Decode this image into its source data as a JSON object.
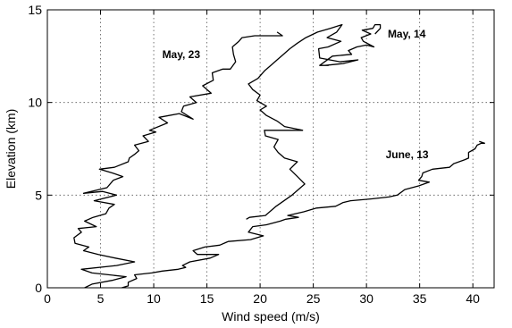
{
  "chart_data": {
    "type": "line",
    "title": "",
    "xlabel": "Wind speed (m/s)",
    "ylabel": "Elevation (km)",
    "xlim": [
      0,
      42
    ],
    "ylim": [
      0,
      15
    ],
    "xticks": [
      "0",
      "5",
      "10",
      "15",
      "20",
      "25",
      "30",
      "35",
      "40"
    ],
    "yticks": [
      "0",
      "5",
      "10",
      "15"
    ],
    "grid": true,
    "series": [
      {
        "name": "May, 23",
        "points": [
          [
            3.5,
            0.0
          ],
          [
            4.2,
            0.2
          ],
          [
            6.1,
            0.4
          ],
          [
            7.4,
            0.6
          ],
          [
            4.2,
            0.8
          ],
          [
            3.2,
            1.0
          ],
          [
            6.5,
            1.2
          ],
          [
            8.2,
            1.4
          ],
          [
            6.4,
            1.6
          ],
          [
            4.8,
            1.8
          ],
          [
            3.4,
            2.0
          ],
          [
            3.9,
            2.2
          ],
          [
            2.6,
            2.4
          ],
          [
            2.5,
            2.7
          ],
          [
            3.2,
            3.0
          ],
          [
            2.9,
            3.2
          ],
          [
            4.6,
            3.3
          ],
          [
            3.5,
            3.6
          ],
          [
            4.3,
            3.8
          ],
          [
            5.5,
            4.0
          ],
          [
            5.8,
            4.3
          ],
          [
            6.3,
            4.5
          ],
          [
            4.4,
            4.7
          ],
          [
            6.5,
            5.0
          ],
          [
            5.2,
            5.2
          ],
          [
            3.4,
            5.1
          ],
          [
            5.6,
            5.4
          ],
          [
            6.2,
            5.8
          ],
          [
            7.1,
            6.0
          ],
          [
            6.1,
            6.2
          ],
          [
            4.9,
            6.4
          ],
          [
            6.3,
            6.5
          ],
          [
            7.6,
            6.8
          ],
          [
            7.7,
            7.0
          ],
          [
            8.2,
            7.2
          ],
          [
            8.6,
            7.4
          ],
          [
            8.2,
            7.7
          ],
          [
            9.5,
            7.9
          ],
          [
            9.0,
            8.2
          ],
          [
            10.2,
            8.4
          ],
          [
            9.6,
            8.5
          ],
          [
            11.3,
            8.9
          ],
          [
            10.5,
            9.2
          ],
          [
            12.4,
            9.4
          ],
          [
            13.7,
            9.1
          ],
          [
            12.6,
            9.5
          ],
          [
            12.8,
            9.8
          ],
          [
            14.0,
            10.0
          ],
          [
            13.4,
            10.3
          ],
          [
            15.4,
            10.5
          ],
          [
            14.6,
            10.9
          ],
          [
            15.6,
            11.2
          ],
          [
            15.5,
            11.6
          ],
          [
            16.5,
            11.8
          ],
          [
            17.2,
            11.8
          ],
          [
            17.7,
            12.2
          ],
          [
            17.5,
            12.6
          ],
          [
            17.4,
            13.0
          ],
          [
            18.0,
            13.3
          ],
          [
            18.3,
            13.5
          ],
          [
            19.5,
            13.6
          ],
          [
            21.0,
            13.6
          ],
          [
            22.1,
            13.6
          ],
          [
            21.6,
            13.8
          ]
        ]
      },
      {
        "name": "May, 14",
        "points": [
          [
            18.7,
            3.7
          ],
          [
            19.0,
            3.8
          ],
          [
            20.5,
            3.9
          ],
          [
            21.5,
            4.4
          ],
          [
            23.0,
            5.0
          ],
          [
            24.2,
            5.6
          ],
          [
            23.5,
            6.0
          ],
          [
            22.8,
            6.4
          ],
          [
            23.5,
            6.8
          ],
          [
            22.3,
            7.0
          ],
          [
            21.7,
            7.3
          ],
          [
            21.3,
            7.6
          ],
          [
            21.7,
            8.0
          ],
          [
            20.5,
            8.2
          ],
          [
            20.4,
            8.5
          ],
          [
            24.0,
            8.5
          ],
          [
            22.3,
            8.7
          ],
          [
            21.6,
            9.0
          ],
          [
            20.6,
            9.3
          ],
          [
            20.0,
            9.6
          ],
          [
            20.6,
            9.8
          ],
          [
            19.7,
            10.1
          ],
          [
            20.0,
            10.4
          ],
          [
            19.3,
            10.7
          ],
          [
            18.9,
            11.0
          ],
          [
            19.8,
            11.3
          ],
          [
            20.4,
            11.7
          ],
          [
            21.0,
            12.0
          ],
          [
            21.6,
            12.3
          ],
          [
            22.2,
            12.6
          ],
          [
            22.8,
            12.9
          ],
          [
            23.5,
            13.2
          ],
          [
            24.3,
            13.5
          ],
          [
            25.4,
            13.8
          ],
          [
            26.6,
            14.0
          ],
          [
            27.7,
            14.2
          ],
          [
            27.2,
            13.8
          ],
          [
            26.3,
            13.5
          ],
          [
            27.6,
            13.3
          ],
          [
            26.4,
            13.0
          ],
          [
            25.5,
            12.9
          ],
          [
            25.6,
            12.4
          ],
          [
            27.5,
            12.2
          ],
          [
            29.2,
            12.3
          ],
          [
            27.8,
            12.1
          ],
          [
            26.1,
            12.0
          ],
          [
            26.4,
            12.0
          ],
          [
            25.6,
            12.0
          ],
          [
            26.8,
            12.5
          ],
          [
            28.6,
            12.6
          ],
          [
            28.3,
            12.8
          ],
          [
            29.1,
            13.0
          ],
          [
            30.0,
            13.1
          ],
          [
            30.7,
            13.0
          ],
          [
            29.7,
            13.3
          ],
          [
            29.5,
            13.5
          ],
          [
            30.4,
            13.7
          ],
          [
            29.6,
            13.9
          ],
          [
            30.6,
            14.0
          ],
          [
            30.8,
            14.2
          ],
          [
            31.3,
            14.2
          ],
          [
            31.3,
            14.0
          ],
          [
            30.8,
            13.7
          ]
        ]
      },
      {
        "name": "June, 13",
        "points": [
          [
            7.0,
            0.0
          ],
          [
            7.6,
            0.1
          ],
          [
            7.6,
            0.3
          ],
          [
            8.4,
            0.5
          ],
          [
            8.2,
            0.7
          ],
          [
            9.8,
            0.8
          ],
          [
            10.8,
            0.9
          ],
          [
            12.3,
            1.0
          ],
          [
            13.0,
            1.1
          ],
          [
            12.7,
            1.2
          ],
          [
            13.4,
            1.4
          ],
          [
            15.3,
            1.6
          ],
          [
            16.1,
            1.8
          ],
          [
            14.1,
            1.8
          ],
          [
            13.7,
            2.0
          ],
          [
            14.8,
            2.2
          ],
          [
            16.2,
            2.3
          ],
          [
            17.0,
            2.5
          ],
          [
            19.1,
            2.6
          ],
          [
            20.3,
            2.8
          ],
          [
            18.9,
            3.0
          ],
          [
            19.3,
            3.3
          ],
          [
            20.6,
            3.4
          ],
          [
            21.9,
            3.6
          ],
          [
            22.4,
            3.7
          ],
          [
            23.6,
            3.8
          ],
          [
            22.6,
            3.9
          ],
          [
            24.1,
            4.1
          ],
          [
            25.3,
            4.3
          ],
          [
            27.1,
            4.4
          ],
          [
            27.8,
            4.6
          ],
          [
            28.5,
            4.7
          ],
          [
            30.5,
            4.8
          ],
          [
            32.1,
            4.9
          ],
          [
            32.9,
            5.0
          ],
          [
            33.6,
            5.3
          ],
          [
            34.9,
            5.5
          ],
          [
            35.9,
            5.7
          ],
          [
            34.9,
            5.8
          ],
          [
            35.2,
            6.0
          ],
          [
            35.3,
            6.2
          ],
          [
            36.2,
            6.4
          ],
          [
            37.8,
            6.5
          ],
          [
            38.2,
            6.7
          ],
          [
            39.2,
            6.9
          ],
          [
            39.6,
            7.0
          ],
          [
            39.6,
            7.3
          ],
          [
            40.2,
            7.5
          ],
          [
            40.4,
            7.7
          ],
          [
            40.8,
            7.8
          ],
          [
            41.1,
            7.8
          ],
          [
            40.6,
            7.9
          ]
        ]
      }
    ],
    "annotations": [
      {
        "text": "May, 23",
        "x": 10.8,
        "y": 12.4
      },
      {
        "text": "May, 14",
        "x": 32.0,
        "y": 13.5
      },
      {
        "text": "June, 13",
        "x": 31.8,
        "y": 7.0
      }
    ]
  }
}
